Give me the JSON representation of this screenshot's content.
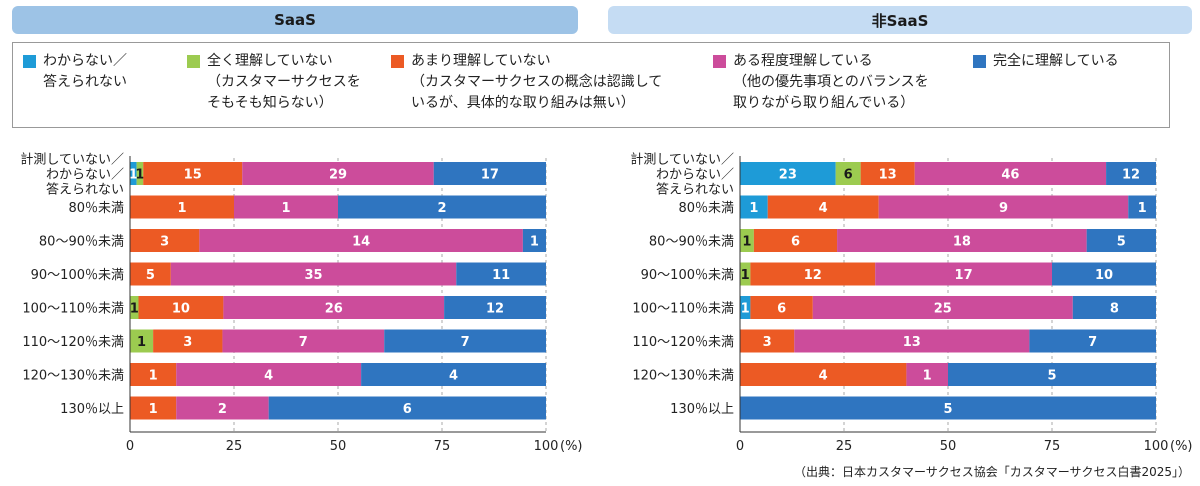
{
  "panels": {
    "saas_title": "SaaS",
    "nonsaas_title": "非SaaS"
  },
  "legend": [
    {
      "label": "わからない／\n答えられない",
      "color": "#1e9bd7"
    },
    {
      "label": "全く理解していない\n（カスタマーサクセスを\nそもそも知らない）",
      "color": "#9ccb50"
    },
    {
      "label": "あまり理解していない\n（カスタマーサクセスの概念は認識して\nいるが、具体的な取り組みは無い）",
      "color": "#ec5a24"
    },
    {
      "label": "ある程度理解している\n（他の優先事項とのバランスを\n取りながら取り組んでいる）",
      "color": "#cc4c9b"
    },
    {
      "label": "完全に理解している",
      "color": "#2f75c0"
    }
  ],
  "source": "（出典：日本カスタマーサクセス協会「カスタマーサクセス白書2025」）",
  "chart_data": [
    {
      "type": "bar",
      "orientation": "horizontal",
      "stacked": "percent",
      "title": "SaaS",
      "categories": [
        "計測していない／\nわからない／\n答えられない",
        "80％未満",
        "80〜90％未満",
        "90〜100％未満",
        "100〜110％未満",
        "110〜120％未満",
        "120〜130％未満",
        "130％以上"
      ],
      "series": [
        {
          "name": "わからない／答えられない",
          "values": [
            1,
            0,
            0,
            0,
            0,
            0,
            0,
            0
          ]
        },
        {
          "name": "全く理解していない",
          "values": [
            1,
            0,
            0,
            0,
            1,
            1,
            0,
            0
          ]
        },
        {
          "name": "あまり理解していない",
          "values": [
            15,
            1,
            3,
            5,
            10,
            3,
            1,
            1
          ]
        },
        {
          "name": "ある程度理解している",
          "values": [
            29,
            1,
            14,
            35,
            26,
            7,
            4,
            2
          ]
        },
        {
          "name": "完全に理解している",
          "values": [
            17,
            2,
            1,
            11,
            12,
            7,
            4,
            6
          ]
        }
      ],
      "xticks": [
        "0",
        "25",
        "50",
        "75",
        "100"
      ],
      "xlabel": "(%)",
      "xlim": [
        0,
        100
      ]
    },
    {
      "type": "bar",
      "orientation": "horizontal",
      "stacked": "percent",
      "title": "非SaaS",
      "categories": [
        "計測していない／\nわからない／\n答えられない",
        "80％未満",
        "80〜90％未満",
        "90〜100％未満",
        "100〜110％未満",
        "110〜120％未満",
        "120〜130％未満",
        "130％以上"
      ],
      "series": [
        {
          "name": "わからない／答えられない",
          "values": [
            23,
            1,
            0,
            0,
            1,
            0,
            0,
            0
          ]
        },
        {
          "name": "全く理解していない",
          "values": [
            6,
            0,
            1,
            1,
            0,
            0,
            0,
            0
          ]
        },
        {
          "name": "あまり理解していない",
          "values": [
            13,
            4,
            6,
            12,
            6,
            3,
            4,
            0
          ]
        },
        {
          "name": "ある程度理解している",
          "values": [
            46,
            9,
            18,
            17,
            25,
            13,
            1,
            0
          ]
        },
        {
          "name": "完全に理解している",
          "values": [
            12,
            1,
            5,
            10,
            8,
            7,
            5,
            5
          ]
        }
      ],
      "xticks": [
        "0",
        "25",
        "50",
        "75",
        "100"
      ],
      "xlabel": "(%)",
      "xlim": [
        0,
        100
      ]
    }
  ]
}
